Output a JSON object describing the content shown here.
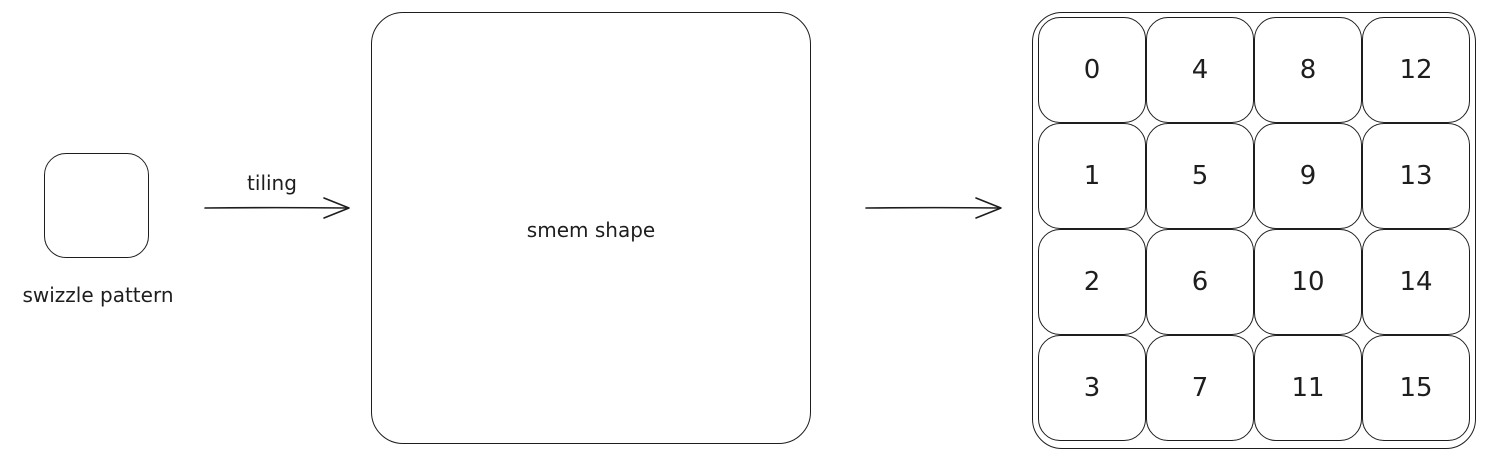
{
  "diagram": {
    "swizzle_label": "swizzle pattern",
    "tiling_label": "tiling",
    "smem_label": "smem shape",
    "grid": {
      "rows": 4,
      "cols": 4,
      "cells": [
        "0",
        "4",
        "8",
        "12",
        "1",
        "5",
        "9",
        "13",
        "2",
        "6",
        "10",
        "14",
        "3",
        "7",
        "11",
        "15"
      ]
    },
    "colors": {
      "stroke": "#1e1e1e",
      "background": "#ffffff"
    }
  }
}
